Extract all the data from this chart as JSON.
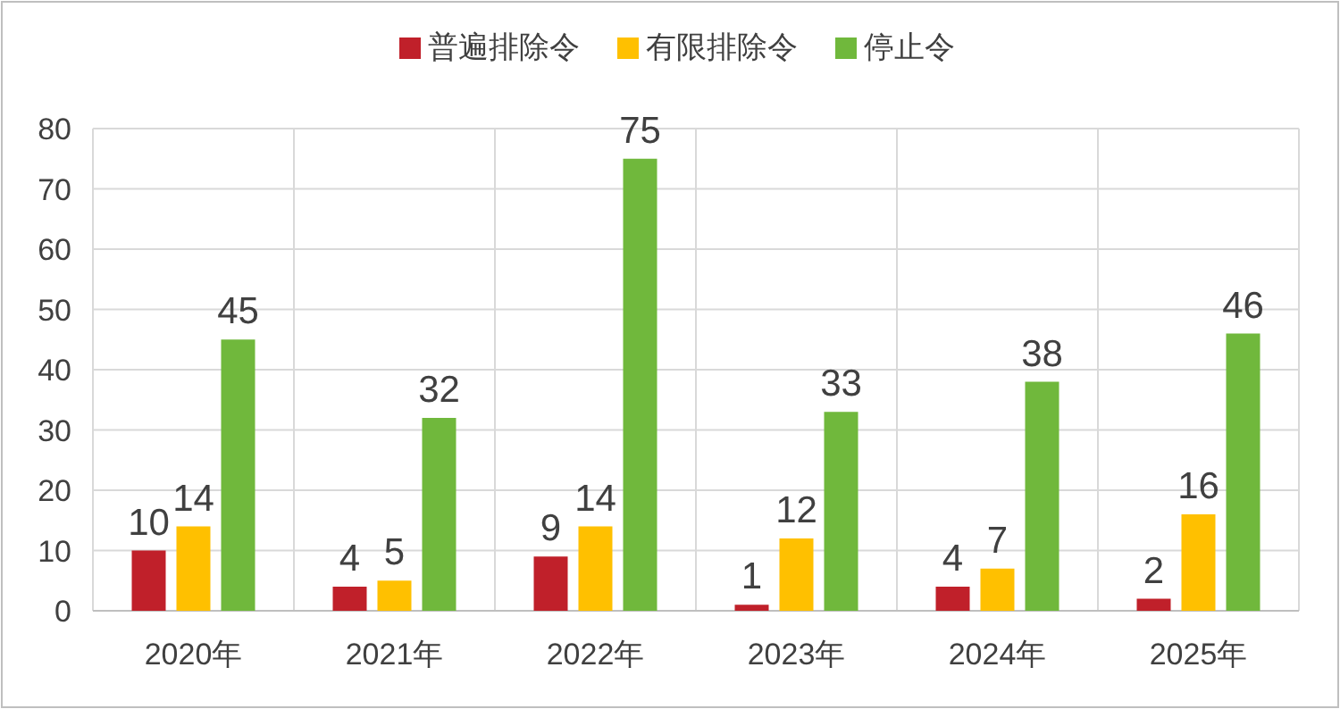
{
  "chart_data": {
    "type": "bar",
    "categories": [
      "2020年",
      "2021年",
      "2022年",
      "2023年",
      "2024年",
      "2025年"
    ],
    "series": [
      {
        "name": "普遍排除令",
        "color": "#c0202a",
        "values": [
          10,
          4,
          9,
          1,
          4,
          2
        ]
      },
      {
        "name": "有限排除令",
        "color": "#ffc000",
        "values": [
          14,
          5,
          14,
          12,
          7,
          16
        ]
      },
      {
        "name": "停止令",
        "color": "#70b83c",
        "values": [
          45,
          32,
          75,
          33,
          38,
          46
        ]
      }
    ],
    "ylim": [
      0,
      80
    ],
    "yticks": [
      0,
      10,
      20,
      30,
      40,
      50,
      60,
      70,
      80
    ],
    "grid": true,
    "legend": "top",
    "data_labels": true
  }
}
